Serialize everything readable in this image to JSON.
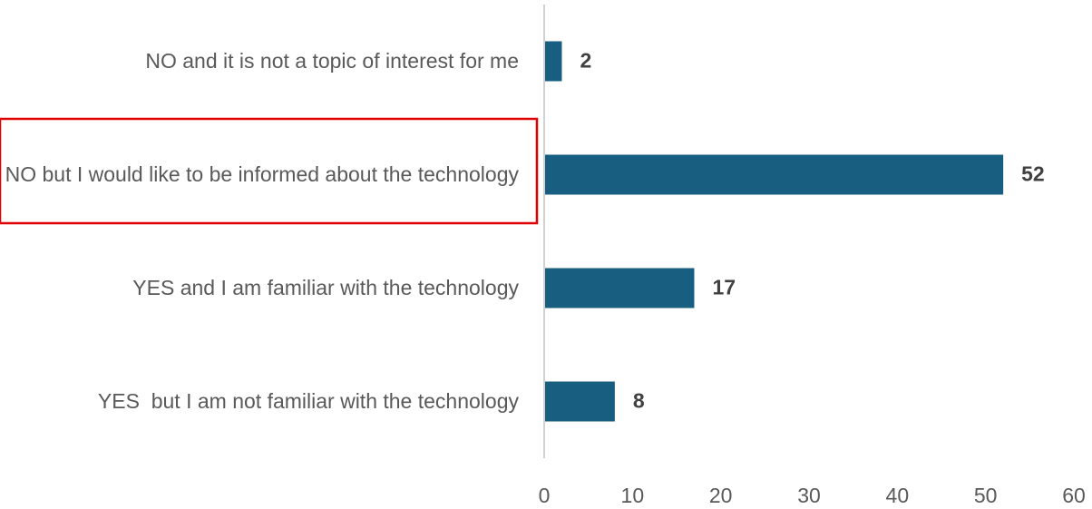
{
  "chart_data": {
    "type": "bar",
    "orientation": "horizontal",
    "categories": [
      "NO and it is not a topic of interest for me",
      "NO but I would like to be informed about the technology",
      "YES and I am familiar with the technology",
      "YES  but I am not familiar with the technology"
    ],
    "values": [
      2,
      52,
      17,
      8
    ],
    "color": "#175e80",
    "xlim": [
      0,
      60
    ],
    "xticks": [
      0,
      10,
      20,
      30,
      40,
      50,
      60
    ],
    "grid": false
  }
}
